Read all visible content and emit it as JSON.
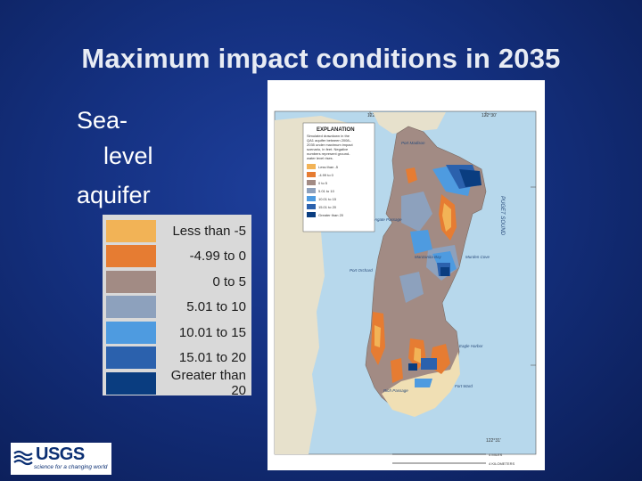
{
  "slide": {
    "title": "Maximum impact conditions in 2035",
    "subtitle_line1": "Sea-",
    "subtitle_line2": "level",
    "subtitle_line3": "aquifer"
  },
  "legend": [
    {
      "label": "Less than -5",
      "color": "#f2b356"
    },
    {
      "label": "-4.99 to 0",
      "color": "#e67c32"
    },
    {
      "label": "0 to 5",
      "color": "#a28b84"
    },
    {
      "label": "5.01 to 10",
      "color": "#8da1bd"
    },
    {
      "label": "10.01 to 15",
      "color": "#4e9be0"
    },
    {
      "label": "15.01 to 20",
      "color": "#2b61ad"
    },
    {
      "label": "Greater than 20",
      "color": "#0a3d80"
    }
  ],
  "map": {
    "explanation_title": "EXPLANATION",
    "explanation_text": [
      "Simulated drawdown in the",
      "QA1 aquifer between 2008–",
      "2035 under maximum impact",
      "scenario, in feet. Negative",
      "numbers represent ground-",
      "water level rises."
    ],
    "legend_small": [
      "Less than -5",
      "-4.99 to 0",
      "0 to 5",
      "5.01 to 10",
      "10.01 to 15",
      "15.01 to 20",
      "Greater than 20"
    ],
    "place_labels": [
      "Port Madison",
      "Agate Passage",
      "Port Orchard",
      "Manzanita Bay",
      "Murden Cove",
      "Eagle Harbor",
      "Fort Ward",
      "Rich Passage",
      "PUGET SOUND"
    ],
    "scale_miles": "4 MILES",
    "scale_km": "4 KILOMETERS"
  },
  "logo": {
    "name": "USGS",
    "tagline": "science for a changing world"
  }
}
